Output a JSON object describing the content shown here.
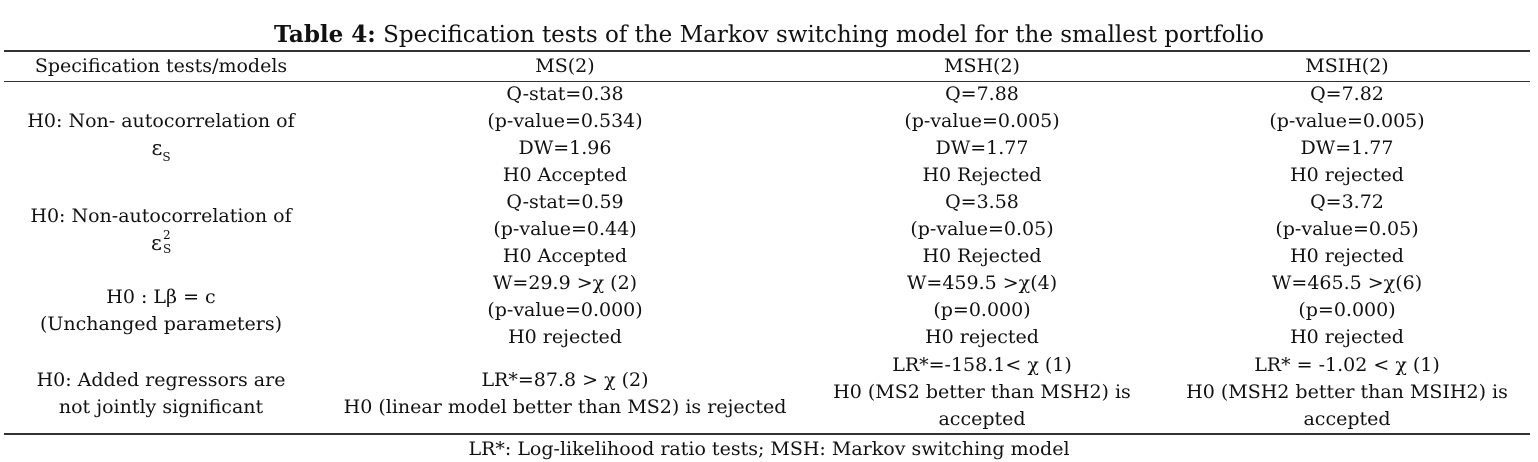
{
  "table": {
    "title_bold": "Table 4:",
    "title_rest": " Specification tests of the Markov switching model for the smallest portfolio",
    "headers": [
      "Specification tests/models",
      "MS(2)",
      "MSH(2)",
      "MSIH(2)"
    ],
    "rows": [
      {
        "test_line1": "H0: Non- autocorrelation of",
        "test_symbol": "ε",
        "test_subscript": "S",
        "ms2": [
          "Q-stat=0.38",
          "(p-value=0.534)",
          "DW=1.96",
          "H0 Accepted"
        ],
        "msh2": [
          "Q=7.88",
          "(p-value=0.005)",
          "DW=1.77",
          "H0 Rejected"
        ],
        "msih2": [
          "Q=7.82",
          "(p-value=0.005)",
          "DW=1.77",
          "H0 rejected"
        ]
      },
      {
        "test_line1": "H0: Non-autocorrelation of",
        "test_symbol": "ε",
        "test_subscript": "S",
        "test_superscript": "2",
        "ms2": [
          "Q-stat=0.59",
          "(p-value=0.44)",
          "H0 Accepted"
        ],
        "msh2": [
          "Q=3.58",
          "(p-value=0.05)",
          "H0 Rejected"
        ],
        "msih2": [
          "Q=3.72",
          "(p-value=0.05)",
          "H0 rejected"
        ]
      },
      {
        "test_line1": "H0 : Lβ = c",
        "test_line2": "(Unchanged parameters)",
        "ms2": [
          "W=29.9 >χ (2)",
          "(p-value=0.000)",
          "H0 rejected"
        ],
        "msh2": [
          "W=459.5 >χ(4)",
          "(p=0.000)",
          "H0 rejected"
        ],
        "msih2": [
          "W=465.5 >χ(6)",
          "(p=0.000)",
          "H0 rejected"
        ]
      },
      {
        "test_line1": "H0: Added regressors are",
        "test_line2": "not jointly significant",
        "ms2": [
          "LR*=87.8 > χ (2)",
          "H0 (linear model better than MS2) is rejected"
        ],
        "msh2": [
          "LR*=-158.1< χ (1)",
          "H0 (MS2 better than MSH2) is",
          "accepted"
        ],
        "msih2": [
          "LR* = -1.02 < χ (1)",
          "H0 (MSH2 better than MSIH2) is",
          "accepted"
        ]
      }
    ],
    "footnote": "LR*: Log-likelihood ratio tests; MSH: Markov switching model"
  }
}
